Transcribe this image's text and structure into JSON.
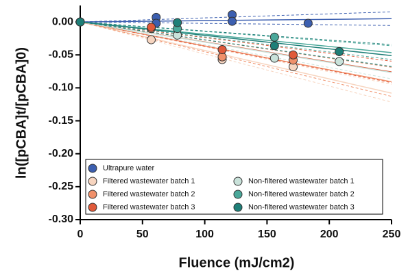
{
  "chart_data": {
    "type": "scatter",
    "x_label": "Fluence (mJ/cm2)",
    "y_label": "ln([pCBA]t/[pCBA]0)",
    "xlim": [
      0,
      250
    ],
    "xticks": [
      0,
      50,
      100,
      150,
      200,
      250
    ],
    "ylim": [
      -0.3,
      0.025
    ],
    "yticks": [
      {
        "value": 0,
        "label": "0.00"
      },
      {
        "value": -0.05,
        "label": "-0.05"
      },
      {
        "value": -0.1,
        "label": "-0.10"
      },
      {
        "value": -0.15,
        "label": "-0.15"
      },
      {
        "value": -0.2,
        "label": "-0.20"
      },
      {
        "value": -0.25,
        "label": "-0.25"
      },
      {
        "value": -0.3,
        "label": "-0.30"
      }
    ],
    "legend": "lower left",
    "series": [
      {
        "name": "Ultrapure water",
        "color": "#3c5fb0",
        "x": [
          0,
          61,
          61,
          122,
          122,
          183
        ],
        "values": [
          0,
          0.007,
          -0.002,
          0.011,
          0.001,
          -0.002
        ]
      },
      {
        "name": "Filtered wastewater batch 1",
        "color": "#f7d5c0",
        "x": [
          0,
          57,
          114,
          171
        ],
        "values": [
          0,
          -0.027,
          -0.057,
          -0.068
        ]
      },
      {
        "name": "Filtered wastewater batch 2",
        "color": "#f0906a",
        "x": [
          0,
          57,
          114,
          171
        ],
        "values": [
          0,
          -0.01,
          -0.053,
          -0.058
        ]
      },
      {
        "name": "Filtered wastewater batch 3",
        "color": "#e05a3a",
        "x": [
          0,
          57,
          114,
          171
        ],
        "values": [
          0,
          -0.008,
          -0.042,
          -0.05
        ]
      },
      {
        "name": "Non-filtered wastewater batch 1",
        "color": "#c9e2da",
        "x": [
          0,
          78,
          156,
          208
        ],
        "values": [
          0,
          -0.02,
          -0.055,
          -0.06
        ]
      },
      {
        "name": "Non-filtered wastewater batch 2",
        "color": "#4aa89a",
        "x": [
          0,
          78,
          156,
          208
        ],
        "values": [
          0,
          -0.01,
          -0.023,
          -0.045
        ]
      },
      {
        "name": "Non-filtered wastewater batch 3",
        "color": "#1e7f78",
        "x": [
          0,
          78,
          156,
          208
        ],
        "values": [
          0,
          -0.001,
          -0.036,
          -0.045
        ]
      }
    ]
  }
}
